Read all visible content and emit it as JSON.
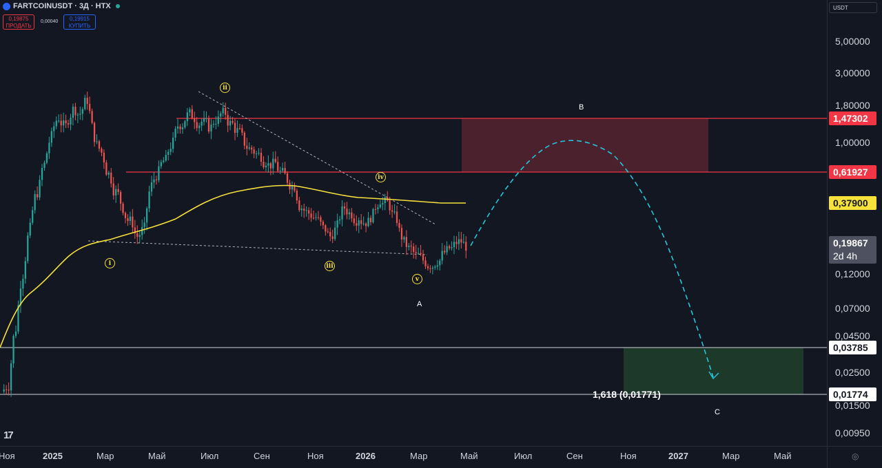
{
  "header": {
    "symbol": "FARTCOINUSDT · 3Д · HTX",
    "sell_price": "0,19875",
    "sell_label": "ПРОДАТЬ",
    "spread": "0,00040",
    "buy_price": "0,19915",
    "buy_label": "КУПИТЬ",
    "currency": "USDT"
  },
  "price_axis": {
    "ticks": [
      "5,00000",
      "3,00000",
      "1,80000",
      "1,00000",
      "0,12000",
      "0,07000",
      "0,04500",
      "0,02500",
      "0,01500",
      "0,00950"
    ]
  },
  "price_tags": {
    "level_b_top": "1,47302",
    "level_b_bottom": "0,61927",
    "moving_average": "0,37900",
    "last_price": "0,19867",
    "countdown": "2d 4h",
    "level_c_top": "0,03785",
    "level_c_bottom": "0,01774"
  },
  "time_axis": {
    "labels": [
      "Ноя",
      "2025",
      "Мар",
      "Май",
      "Июл",
      "Сен",
      "Ноя",
      "2026",
      "Мар",
      "Май",
      "Июл",
      "Сен",
      "Ноя",
      "2027",
      "Мар",
      "Май"
    ]
  },
  "annotations": {
    "wave_i": "i",
    "wave_ii": "ii",
    "wave_iii": "iii",
    "wave_iv": "iv",
    "wave_v": "v",
    "point_a": "A",
    "point_b": "B",
    "point_c": "C",
    "fib_label": "1,618 (0,01771)"
  },
  "colors": {
    "background": "#131722",
    "up_candle": "#26a69a",
    "down_candle": "#ef5350",
    "resistance_line": "#f23645",
    "ma_line": "#f7e23c",
    "projection": "#26c6da",
    "support_line": "#ffffff",
    "zone_b_fill": "#5d2631",
    "zone_c_fill": "#1f3d2a"
  },
  "chart_data": {
    "type": "candlestick",
    "timeframe": "3Д",
    "scale": "log",
    "candles_close": [
      0.02,
      0.05,
      0.12,
      0.25,
      0.45,
      0.7,
      1.1,
      1.5,
      1.3,
      1.7,
      1.6,
      2.0,
      1.1,
      0.85,
      0.6,
      0.45,
      0.35,
      0.28,
      0.22,
      0.25,
      0.5,
      0.62,
      0.75,
      1.0,
      1.35,
      1.55,
      1.5,
      1.4,
      1.3,
      1.45,
      1.6,
      1.35,
      1.2,
      1.0,
      0.9,
      0.82,
      0.75,
      0.7,
      0.62,
      0.55,
      0.5,
      0.35,
      0.32,
      0.3,
      0.25,
      0.22,
      0.26,
      0.35,
      0.32,
      0.3,
      0.28,
      0.31,
      0.4,
      0.38,
      0.3,
      0.22,
      0.18,
      0.16,
      0.15,
      0.14,
      0.15,
      0.17,
      0.18,
      0.2,
      0.19
    ],
    "moving_average_last": 0.379,
    "levels": [
      1.47302,
      0.61927,
      0.03785,
      0.01774
    ],
    "projection_peak": 1.0,
    "projection_target": 0.025,
    "fib_extension": {
      "ratio": 1.618,
      "price": 0.01771
    }
  }
}
